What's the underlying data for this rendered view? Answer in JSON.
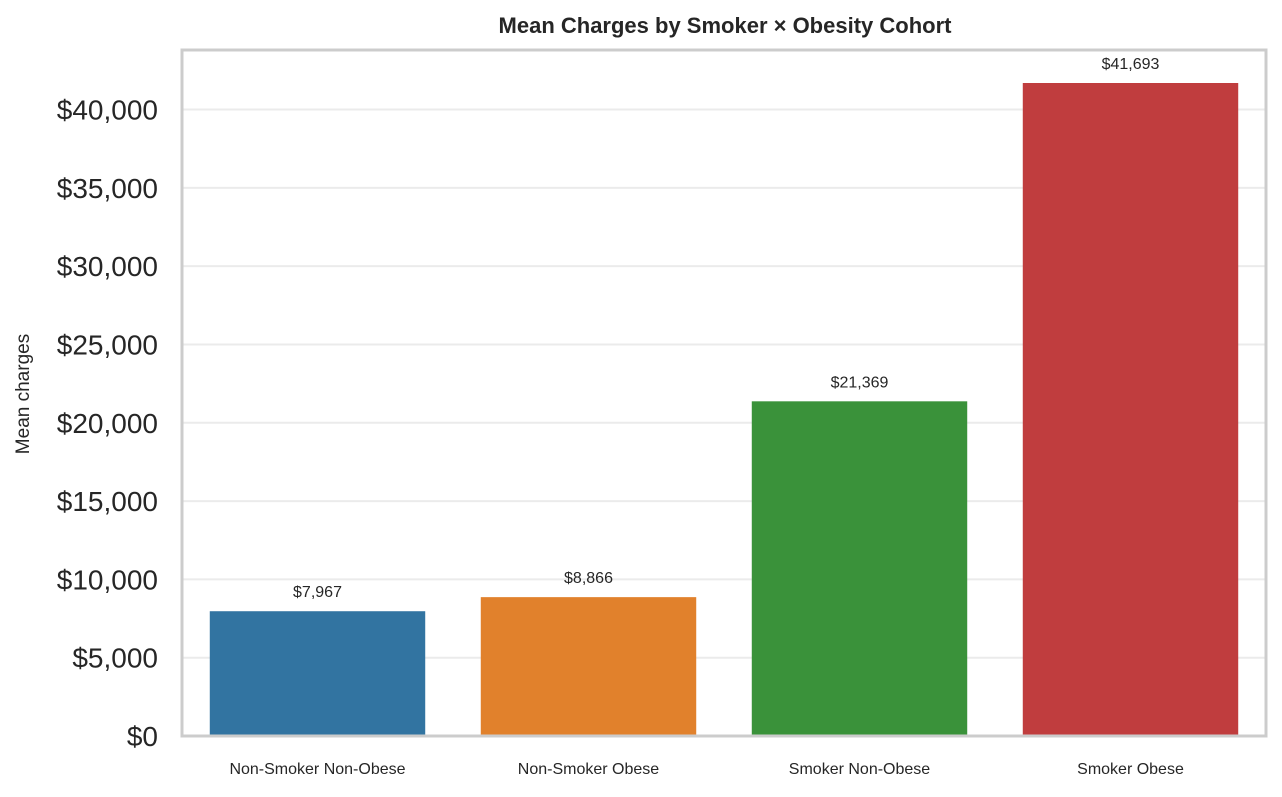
{
  "chart_data": {
    "type": "bar",
    "title": "Mean Charges by Smoker × Obesity Cohort",
    "xlabel": "",
    "ylabel": "Mean charges",
    "categories": [
      "Non-Smoker Non-Obese",
      "Non-Smoker Obese",
      "Smoker Non-Obese",
      "Smoker Obese"
    ],
    "values": [
      7967,
      8866,
      21369,
      41693
    ],
    "value_labels": [
      "$7,967",
      "$8,866",
      "$21,369",
      "$41,693"
    ],
    "colors": [
      "#3274a1",
      "#e1812c",
      "#3a923a",
      "#c03d3e"
    ],
    "ylim": [
      0,
      43800
    ],
    "yticks": [
      0,
      5000,
      10000,
      15000,
      20000,
      25000,
      30000,
      35000,
      40000
    ],
    "ytick_labels": [
      "$0",
      "$5,000",
      "$10,000",
      "$15,000",
      "$20,000",
      "$25,000",
      "$30,000",
      "$35,000",
      "$40,000"
    ],
    "grid": true,
    "legend": false
  }
}
